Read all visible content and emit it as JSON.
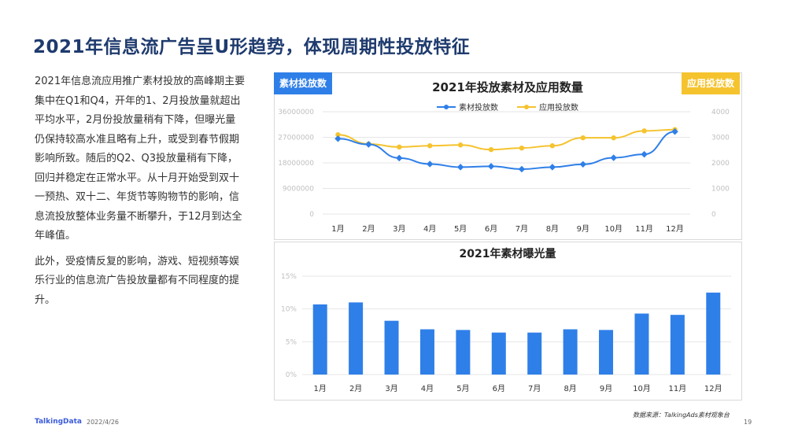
{
  "page": {
    "title": "2021年信息流广告呈U形趋势，体现周期性投放特征",
    "paragraphs": [
      "2021年信息流应用推广素材投放的高峰期主要集中在Q1和Q4，开年的1、2月投放量就超出平均水平，2月份投放量稍有下降，但曝光量仍保持较高水准且略有上升，或受到春节假期影响所致。随后的Q2、Q3投放量稍有下降，回归并稳定在正常水平。从十月开始受到双十一预热、双十二、年货节等购物节的影响，信息流投放整体业务量不断攀升，于12月到达全年峰值。",
      "此外，受疫情反复的影响，游戏、短视频等娱乐行业的信息流广告投放量都有不同程度的提升。"
    ],
    "badge_left": "素材投放数",
    "badge_right": "应用投放数",
    "source": "数据来源：TalkingAds素材观象台",
    "logo": "TalkingData",
    "date": "2022/4/26",
    "page_number": "19"
  },
  "colors": {
    "blue": "#2f7fe8",
    "yellow": "#f5c32e",
    "title": "#1f3b6e",
    "axis_text": "#bfbfbf",
    "grid": "#e6e6e6"
  },
  "chart_data": [
    {
      "type": "line",
      "title": "2021年投放素材及应用数量",
      "categories": [
        "1月",
        "2月",
        "3月",
        "4月",
        "5月",
        "6月",
        "7月",
        "8月",
        "9月",
        "10月",
        "11月",
        "12月"
      ],
      "series": [
        {
          "name": "素材投放数",
          "axis": "left",
          "values": [
            26500000,
            24500000,
            19700000,
            17600000,
            16500000,
            16800000,
            15800000,
            16500000,
            17500000,
            19800000,
            21000000,
            29000000
          ]
        },
        {
          "name": "应用投放数",
          "axis": "right",
          "values": [
            3100,
            2740,
            2620,
            2670,
            2700,
            2520,
            2580,
            2670,
            2980,
            2980,
            3250,
            3300
          ]
        }
      ],
      "y_left": {
        "range": [
          0,
          36000000
        ],
        "ticks": [
          "0",
          "9000000",
          "18000000",
          "27000000",
          "36000000"
        ]
      },
      "y_right": {
        "range": [
          0,
          4000
        ],
        "ticks": [
          "0",
          "1000",
          "2000",
          "3000",
          "4000"
        ]
      },
      "legend": "top-center",
      "grid": true
    },
    {
      "type": "bar",
      "title": "2021年素材曝光量",
      "categories": [
        "1月",
        "2月",
        "3月",
        "4月",
        "5月",
        "6月",
        "7月",
        "8月",
        "9月",
        "10月",
        "11月",
        "12月"
      ],
      "values": [
        10.7,
        11.0,
        8.2,
        6.9,
        6.8,
        6.4,
        6.4,
        6.9,
        6.8,
        9.3,
        9.1,
        12.5
      ],
      "unit": "%",
      "ylim": [
        0,
        15
      ],
      "y_ticks": [
        "0%",
        "5%",
        "10%",
        "15%"
      ],
      "grid": true
    }
  ]
}
